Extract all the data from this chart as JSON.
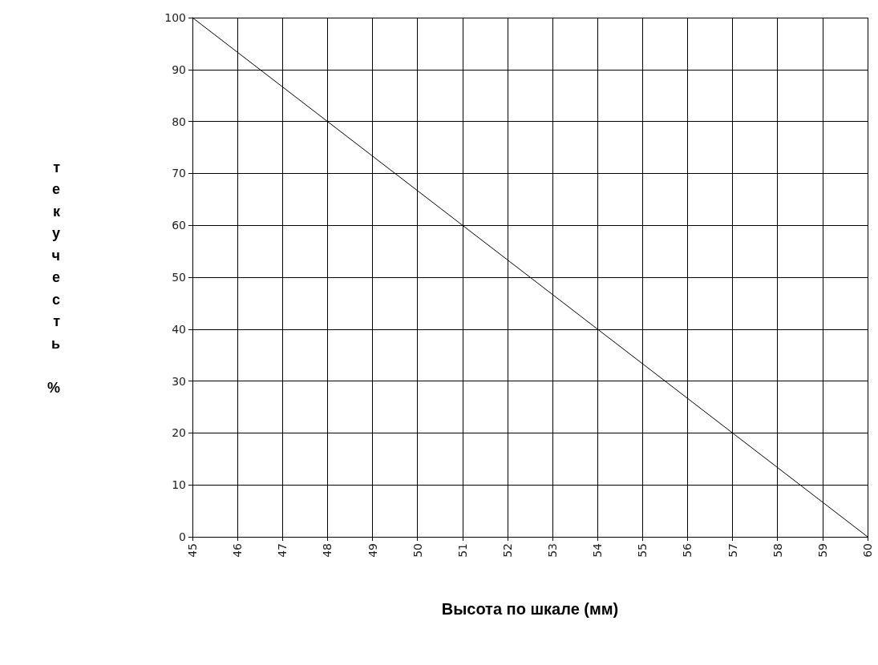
{
  "chart_data": {
    "type": "line",
    "xlabel": "Высота по шкале (мм)",
    "ylabel": "текучесть %",
    "x": [
      45,
      60
    ],
    "series": [
      {
        "color": "#000000",
        "values": [
          100,
          0
        ]
      }
    ],
    "xlim": [
      45,
      60
    ],
    "xticks": [
      45,
      46,
      47,
      48,
      49,
      50,
      51,
      52,
      53,
      54,
      55,
      56,
      57,
      58,
      59,
      60
    ],
    "ylim": [
      0,
      100
    ],
    "yticks": [
      0,
      10,
      20,
      30,
      40,
      50,
      60,
      70,
      80,
      90,
      100
    ],
    "grid": true,
    "marker": "none",
    "line_style": "solid"
  }
}
